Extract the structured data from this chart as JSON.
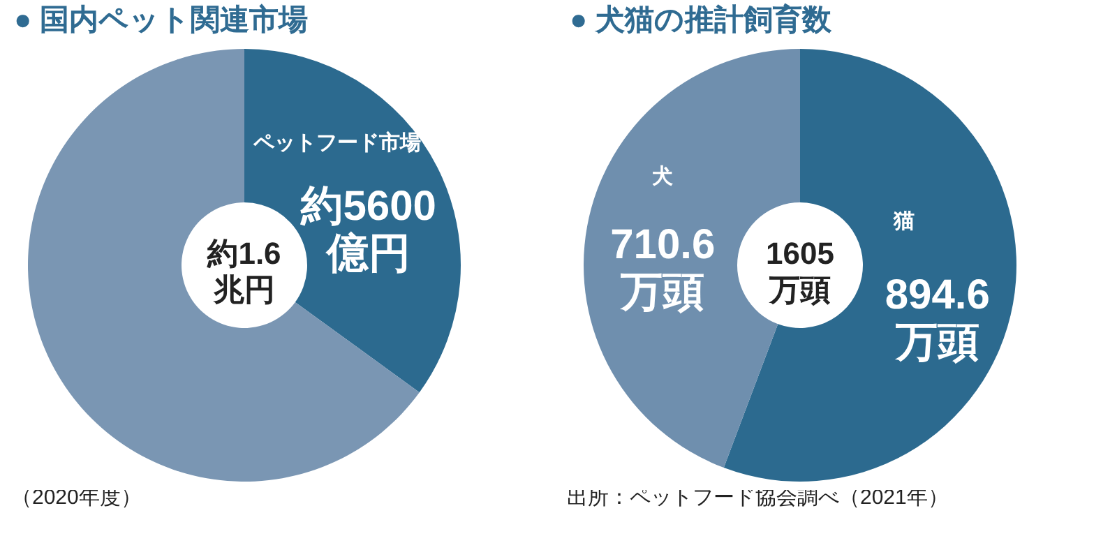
{
  "chart_data": [
    {
      "type": "donut",
      "title": "● 国内ペット関連市場",
      "categories": [
        "ペットフード市場",
        null
      ],
      "values": [
        35,
        65
      ],
      "colors": [
        "#2c6a8f",
        "#7a96b3"
      ],
      "value_labels": [
        "約5600億円",
        null
      ],
      "annotations": [
        "約1.6兆円",
        "（2020年度）"
      ]
    },
    {
      "type": "donut",
      "title": "● 犬猫の推計飼育数",
      "categories": [
        "猫",
        "犬"
      ],
      "values": [
        894.6,
        710.6
      ],
      "colors": [
        "#2c6a8f",
        "#6f8fae"
      ],
      "value_labels": [
        "894.6万頭",
        "710.6万頭"
      ],
      "annotations": [
        "1605万頭",
        "出所：ペットフード協会調べ（2021年）"
      ]
    }
  ]
}
